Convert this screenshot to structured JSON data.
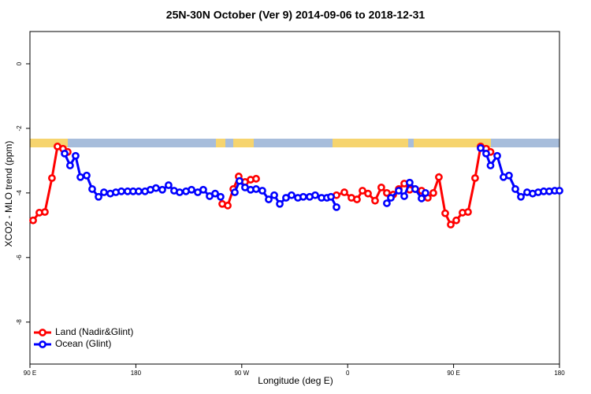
{
  "chart_data": {
    "type": "line",
    "title": "25N-30N October (Ver 9)   2014-09-06 to 2018-12-31",
    "x_label": "Longitude (deg E)",
    "y_label": "XCO2 - MLO trend (ppm)",
    "xlim": [
      90,
      540
    ],
    "xticks": [
      {
        "value": 90,
        "label": "90 E"
      },
      {
        "value": 180,
        "label": "180"
      },
      {
        "value": 270,
        "label": "90 W"
      },
      {
        "value": 360,
        "label": "0"
      },
      {
        "value": 450,
        "label": "90 E"
      },
      {
        "value": 540,
        "label": "180"
      }
    ],
    "ylim": [
      -9.3,
      1
    ],
    "yticks": [
      0,
      -2,
      -4,
      -6,
      -8
    ],
    "legend": "bottom-left",
    "series": [
      {
        "name": "Land (Nadir&Glint)",
        "color": "#ff0000",
        "x": [
          92.7,
          98.0,
          102.7,
          108.7,
          113.4,
          118.1,
          122.1,
          null,
          253.4,
          258.1,
          262.8,
          267.4,
          272.8,
          277.5,
          282.2,
          null,
          350.5,
          357.2,
          363.2,
          367.9,
          372.6,
          377.3,
          383.3,
          388.6,
          393.3,
          398.7,
          403.4,
          408.1,
          412.7,
          417.4,
          422.8,
          428.1,
          432.8,
          437.5,
          442.9,
          447.6,
          452.3,
          457.6,
          462.3,
          468.3,
          473.0,
          477.7,
          481.4
        ],
        "values": [
          -4.85,
          -4.61,
          -4.59,
          -3.54,
          -2.56,
          -2.63,
          -2.73,
          null,
          -4.34,
          -4.39,
          -3.88,
          -3.49,
          -3.66,
          -3.59,
          -3.56,
          null,
          -4.07,
          -3.98,
          -4.15,
          -4.2,
          -3.93,
          -4.02,
          -4.24,
          -3.83,
          -4.0,
          -4.05,
          -3.88,
          -3.71,
          -3.9,
          -3.88,
          -3.93,
          -4.15,
          -4.0,
          -3.51,
          -4.63,
          -4.98,
          -4.85,
          -4.61,
          -4.59,
          -3.54,
          -2.56,
          -2.63,
          -2.73
        ]
      },
      {
        "name": "Ocean (Glint)",
        "color": "#0000ff",
        "x": [
          119.5,
          124.1,
          128.8,
          132.9,
          138.2,
          142.9,
          148.3,
          152.9,
          158.3,
          163.0,
          167.7,
          173.0,
          177.7,
          182.4,
          187.8,
          192.4,
          197.1,
          202.5,
          207.8,
          212.5,
          217.2,
          222.6,
          227.3,
          232.6,
          237.3,
          242.7,
          247.4,
          252.0,
          null,
          264.1,
          268.1,
          272.8,
          277.5,
          282.2,
          287.5,
          292.9,
          297.6,
          302.3,
          307.6,
          312.3,
          317.7,
          322.3,
          327.7,
          332.4,
          337.8,
          342.4,
          345.8,
          350.5,
          null,
          393.3,
          396.7,
          403.4,
          408.1,
          412.7,
          417.4,
          422.8,
          426.1,
          null,
          473.0,
          477.7,
          481.4,
          487.1,
          492.4,
          497.1,
          502.5,
          507.2,
          512.5,
          517.2,
          521.9,
          526.6,
          531.3,
          536.0,
          540.0
        ],
        "values": [
          -2.78,
          -3.15,
          -2.85,
          -3.51,
          -3.46,
          -3.88,
          -4.12,
          -3.98,
          -4.02,
          -3.98,
          -3.95,
          -3.95,
          -3.95,
          -3.95,
          -3.95,
          -3.9,
          -3.85,
          -3.9,
          -3.76,
          -3.93,
          -3.98,
          -3.95,
          -3.9,
          -3.98,
          -3.9,
          -4.1,
          -4.02,
          -4.12,
          null,
          -3.98,
          -3.63,
          -3.83,
          -3.9,
          -3.88,
          -3.93,
          -4.2,
          -4.07,
          -4.34,
          -4.15,
          -4.07,
          -4.15,
          -4.12,
          -4.12,
          -4.07,
          -4.15,
          -4.15,
          -4.12,
          -4.44,
          null,
          -4.32,
          -4.15,
          -3.93,
          -4.1,
          -3.68,
          -3.88,
          -4.17,
          -4.0,
          null,
          -2.61,
          -2.78,
          -3.15,
          -2.85,
          -3.51,
          -3.46,
          -3.88,
          -4.12,
          -3.98,
          -4.02,
          -3.98,
          -3.95,
          -3.95,
          -3.93,
          -3.93
        ]
      }
    ]
  }
}
